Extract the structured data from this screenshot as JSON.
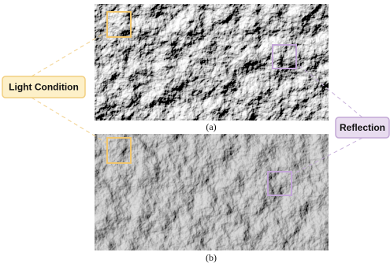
{
  "figure": {
    "labels": {
      "light": "Light Condition",
      "reflection": "Reflection"
    },
    "captions": [
      "(a)",
      "(b)"
    ]
  }
}
